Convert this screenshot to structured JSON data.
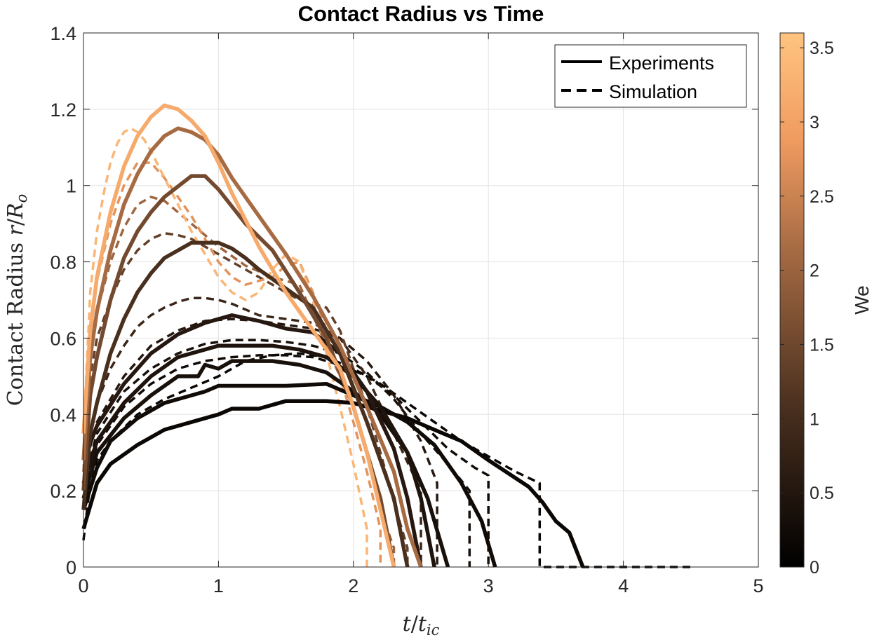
{
  "chart_data": {
    "type": "line",
    "title": "Contact Radius vs Time",
    "xlabel": "t/t_ic",
    "ylabel": "Contact Radius r/R_o",
    "xlim": [
      0,
      5
    ],
    "ylim": [
      0,
      1.4
    ],
    "xticks": [
      "0",
      "1",
      "2",
      "3",
      "4",
      "5"
    ],
    "yticks": [
      "0",
      "0.2",
      "0.4",
      "0.6",
      "0.8",
      "1",
      "1.2",
      "1.4"
    ],
    "grid": true,
    "legend": {
      "placement": "top-right",
      "entries": [
        {
          "label": "Experiments",
          "style": "solid"
        },
        {
          "label": "Simulation",
          "style": "dashed"
        }
      ]
    },
    "colorbar": {
      "label": "We",
      "range": [
        0,
        3.6
      ],
      "ticks": [
        "0",
        "0.5",
        "1",
        "1.5",
        "2",
        "2.5",
        "3",
        "3.5"
      ],
      "tick_values": [
        0,
        0.5,
        1,
        1.5,
        2,
        2.5,
        3,
        3.5
      ],
      "color_low": "#000000",
      "color_high": "#ffc480"
    },
    "series": [
      {
        "style": "solid",
        "we": 0.15,
        "x": [
          0,
          0.1,
          0.2,
          0.4,
          0.6,
          0.8,
          1.0,
          1.1,
          1.3,
          1.5,
          1.8,
          2.0,
          2.2,
          2.4,
          2.6,
          2.8,
          3.0,
          3.3,
          3.4,
          3.5,
          3.6,
          3.7
        ],
        "y": [
          0.1,
          0.22,
          0.27,
          0.32,
          0.36,
          0.38,
          0.4,
          0.415,
          0.415,
          0.435,
          0.435,
          0.43,
          0.41,
          0.39,
          0.36,
          0.33,
          0.28,
          0.21,
          0.17,
          0.12,
          0.09,
          0.0
        ]
      },
      {
        "style": "solid",
        "we": 0.25,
        "x": [
          0,
          0.1,
          0.2,
          0.4,
          0.6,
          0.8,
          0.9,
          1.0,
          1.5,
          1.8,
          2.0,
          2.2,
          2.4,
          2.6,
          2.8,
          2.95,
          3.05
        ],
        "y": [
          0.15,
          0.26,
          0.33,
          0.39,
          0.43,
          0.45,
          0.46,
          0.475,
          0.475,
          0.48,
          0.45,
          0.42,
          0.38,
          0.32,
          0.22,
          0.12,
          0.0
        ]
      },
      {
        "style": "solid",
        "we": 0.35,
        "x": [
          0,
          0.1,
          0.3,
          0.5,
          0.7,
          0.85,
          0.9,
          1.0,
          1.1,
          1.4,
          1.6,
          1.8,
          2.0,
          2.2,
          2.4,
          2.55,
          2.7
        ],
        "y": [
          0.18,
          0.3,
          0.39,
          0.45,
          0.5,
          0.5,
          0.53,
          0.52,
          0.54,
          0.54,
          0.53,
          0.51,
          0.46,
          0.4,
          0.3,
          0.18,
          0.0
        ]
      },
      {
        "style": "solid",
        "we": 0.45,
        "x": [
          0,
          0.1,
          0.3,
          0.5,
          0.7,
          1.0,
          1.2,
          1.4,
          1.6,
          1.8,
          2.0,
          2.2,
          2.4,
          2.5,
          2.6
        ],
        "y": [
          0.22,
          0.33,
          0.43,
          0.5,
          0.55,
          0.58,
          0.58,
          0.58,
          0.57,
          0.55,
          0.5,
          0.42,
          0.3,
          0.18,
          0.0
        ]
      },
      {
        "style": "solid",
        "we": 0.55,
        "x": [
          0,
          0.1,
          0.3,
          0.5,
          0.7,
          0.9,
          1.1,
          1.3,
          1.5,
          1.7,
          1.9,
          2.1,
          2.3,
          2.4,
          2.5
        ],
        "y": [
          0.28,
          0.37,
          0.48,
          0.56,
          0.61,
          0.64,
          0.66,
          0.645,
          0.625,
          0.615,
          0.56,
          0.46,
          0.31,
          0.18,
          0.0
        ]
      },
      {
        "style": "solid",
        "we": 1.05,
        "x": [
          0,
          0.05,
          0.1,
          0.2,
          0.3,
          0.4,
          0.5,
          0.6,
          0.8,
          0.9,
          1.0,
          1.1,
          1.2,
          1.3,
          1.5,
          1.7,
          1.9,
          2.1,
          2.3,
          2.4
        ],
        "y": [
          0.15,
          0.35,
          0.43,
          0.56,
          0.65,
          0.72,
          0.77,
          0.81,
          0.85,
          0.85,
          0.85,
          0.835,
          0.81,
          0.78,
          0.73,
          0.68,
          0.56,
          0.38,
          0.18,
          0.0
        ]
      },
      {
        "style": "solid",
        "we": 1.55,
        "x": [
          0,
          0.05,
          0.1,
          0.2,
          0.3,
          0.4,
          0.5,
          0.6,
          0.8,
          0.9,
          1.0,
          1.2,
          1.4,
          1.6,
          1.8,
          2.0,
          2.2,
          2.3
        ],
        "y": [
          0.2,
          0.45,
          0.55,
          0.7,
          0.81,
          0.88,
          0.93,
          0.97,
          1.025,
          1.025,
          0.99,
          0.9,
          0.83,
          0.72,
          0.6,
          0.42,
          0.18,
          0.0
        ]
      },
      {
        "style": "solid",
        "we": 2.15,
        "x": [
          0,
          0.05,
          0.1,
          0.2,
          0.3,
          0.4,
          0.5,
          0.6,
          0.7,
          0.8,
          0.9,
          1.0,
          1.1,
          1.3,
          1.5,
          1.7,
          1.9,
          2.1,
          2.3,
          2.4,
          2.5
        ],
        "y": [
          0.28,
          0.55,
          0.67,
          0.83,
          0.95,
          1.03,
          1.09,
          1.13,
          1.15,
          1.14,
          1.12,
          1.08,
          1.02,
          0.92,
          0.82,
          0.71,
          0.58,
          0.42,
          0.25,
          0.1,
          0.0
        ]
      },
      {
        "style": "solid",
        "we": 3.15,
        "x": [
          0,
          0.05,
          0.1,
          0.2,
          0.3,
          0.4,
          0.5,
          0.6,
          0.7,
          0.8,
          0.9,
          1.0,
          1.1,
          1.3,
          1.5,
          1.7,
          1.9,
          2.0,
          2.1,
          2.2,
          2.3
        ],
        "y": [
          0.35,
          0.62,
          0.76,
          0.93,
          1.05,
          1.13,
          1.18,
          1.21,
          1.2,
          1.17,
          1.13,
          1.06,
          0.98,
          0.84,
          0.72,
          0.62,
          0.52,
          0.42,
          0.3,
          0.15,
          0.0
        ]
      },
      {
        "style": "dashed",
        "we": 0.15,
        "x": [
          0,
          0.05,
          0.1,
          0.2,
          0.4,
          0.6,
          0.8,
          1.0,
          1.2,
          1.4,
          1.6,
          1.8,
          2.0,
          2.2,
          2.4,
          2.6,
          2.8,
          3.0,
          3.2,
          3.38,
          3.38,
          4.5
        ],
        "y": [
          0.07,
          0.22,
          0.28,
          0.33,
          0.4,
          0.44,
          0.47,
          0.5,
          0.54,
          0.555,
          0.56,
          0.55,
          0.52,
          0.48,
          0.43,
          0.38,
          0.33,
          0.29,
          0.25,
          0.22,
          0.0,
          0.0
        ]
      },
      {
        "style": "dashed",
        "we": 0.25,
        "x": [
          0,
          0.1,
          0.3,
          0.5,
          0.7,
          0.9,
          1.1,
          1.3,
          1.5,
          1.7,
          1.9,
          2.1,
          2.3,
          2.5,
          2.7,
          2.9,
          3.0,
          3.0
        ],
        "y": [
          0.2,
          0.32,
          0.42,
          0.48,
          0.52,
          0.54,
          0.55,
          0.555,
          0.555,
          0.55,
          0.53,
          0.5,
          0.45,
          0.38,
          0.31,
          0.26,
          0.24,
          0.0
        ]
      },
      {
        "style": "dashed",
        "we": 0.35,
        "x": [
          0,
          0.1,
          0.3,
          0.5,
          0.7,
          0.9,
          1.1,
          1.3,
          1.5,
          1.7,
          1.9,
          2.1,
          2.3,
          2.5,
          2.7,
          2.86,
          2.86
        ],
        "y": [
          0.22,
          0.35,
          0.46,
          0.52,
          0.56,
          0.585,
          0.595,
          0.595,
          0.59,
          0.58,
          0.56,
          0.51,
          0.44,
          0.35,
          0.27,
          0.2,
          0.0
        ]
      },
      {
        "style": "dashed",
        "we": 0.55,
        "x": [
          0,
          0.1,
          0.3,
          0.5,
          0.7,
          0.9,
          1.1,
          1.3,
          1.5,
          1.7,
          1.9,
          2.1,
          2.3,
          2.5,
          2.62,
          2.62
        ],
        "y": [
          0.25,
          0.38,
          0.5,
          0.58,
          0.62,
          0.645,
          0.65,
          0.645,
          0.635,
          0.625,
          0.6,
          0.54,
          0.45,
          0.33,
          0.22,
          0.0
        ]
      },
      {
        "style": "dashed",
        "we": 0.85,
        "x": [
          0,
          0.05,
          0.1,
          0.2,
          0.3,
          0.4,
          0.5,
          0.6,
          0.7,
          0.8,
          0.9,
          1.0,
          1.1,
          1.3,
          1.5,
          1.7,
          1.9,
          2.1,
          2.3,
          2.5,
          2.5
        ],
        "y": [
          0.2,
          0.35,
          0.43,
          0.52,
          0.58,
          0.63,
          0.66,
          0.68,
          0.695,
          0.705,
          0.705,
          0.7,
          0.69,
          0.66,
          0.65,
          0.64,
          0.6,
          0.5,
          0.35,
          0.2,
          0.0
        ]
      },
      {
        "style": "dashed",
        "we": 1.35,
        "x": [
          0,
          0.05,
          0.1,
          0.2,
          0.3,
          0.4,
          0.5,
          0.6,
          0.7,
          0.8,
          0.9,
          1.0,
          1.1,
          1.2,
          1.3,
          1.4,
          1.6,
          1.8,
          1.9,
          2.0,
          2.1,
          2.2,
          2.3,
          2.4,
          2.4
        ],
        "y": [
          0.25,
          0.5,
          0.6,
          0.7,
          0.78,
          0.83,
          0.86,
          0.875,
          0.87,
          0.86,
          0.84,
          0.82,
          0.8,
          0.78,
          0.76,
          0.74,
          0.7,
          0.68,
          0.62,
          0.52,
          0.42,
          0.3,
          0.17,
          0.05,
          0.0
        ]
      },
      {
        "style": "dashed",
        "we": 2.05,
        "x": [
          0,
          0.05,
          0.1,
          0.2,
          0.3,
          0.4,
          0.5,
          0.6,
          0.7,
          0.8,
          0.9,
          1.0,
          1.2,
          1.4,
          1.6,
          1.7,
          1.8,
          1.9,
          2.0,
          2.1,
          2.2,
          2.3,
          2.3
        ],
        "y": [
          0.25,
          0.55,
          0.67,
          0.8,
          0.89,
          0.95,
          0.97,
          0.96,
          0.93,
          0.9,
          0.87,
          0.84,
          0.79,
          0.76,
          0.74,
          0.66,
          0.58,
          0.5,
          0.42,
          0.3,
          0.15,
          0.05,
          0.0
        ]
      },
      {
        "style": "dashed",
        "we": 2.75,
        "x": [
          0,
          0.05,
          0.1,
          0.2,
          0.3,
          0.4,
          0.5,
          0.6,
          0.7,
          0.8,
          0.9,
          1.0,
          1.1,
          1.2,
          1.4,
          1.5,
          1.6,
          1.7,
          1.8,
          1.9,
          2.0,
          2.1,
          2.2,
          2.2
        ],
        "y": [
          0.3,
          0.6,
          0.75,
          0.9,
          1.0,
          1.06,
          1.06,
          1.02,
          0.97,
          0.92,
          0.86,
          0.8,
          0.76,
          0.74,
          0.76,
          0.79,
          0.8,
          0.72,
          0.62,
          0.5,
          0.38,
          0.25,
          0.1,
          0.0
        ]
      },
      {
        "style": "dashed",
        "we": 3.35,
        "x": [
          0,
          0.05,
          0.1,
          0.15,
          0.2,
          0.25,
          0.3,
          0.35,
          0.4,
          0.45,
          0.5,
          0.6,
          0.7,
          0.8,
          0.9,
          1.0,
          1.1,
          1.2,
          1.3,
          1.4,
          1.5,
          1.6,
          1.7,
          1.8,
          1.9,
          2.0,
          2.1,
          2.1
        ],
        "y": [
          0.35,
          0.72,
          0.88,
          0.98,
          1.06,
          1.11,
          1.14,
          1.15,
          1.14,
          1.12,
          1.09,
          1.02,
          0.95,
          0.88,
          0.82,
          0.76,
          0.72,
          0.7,
          0.72,
          0.78,
          0.82,
          0.8,
          0.7,
          0.56,
          0.42,
          0.27,
          0.1,
          0.0
        ]
      }
    ]
  }
}
